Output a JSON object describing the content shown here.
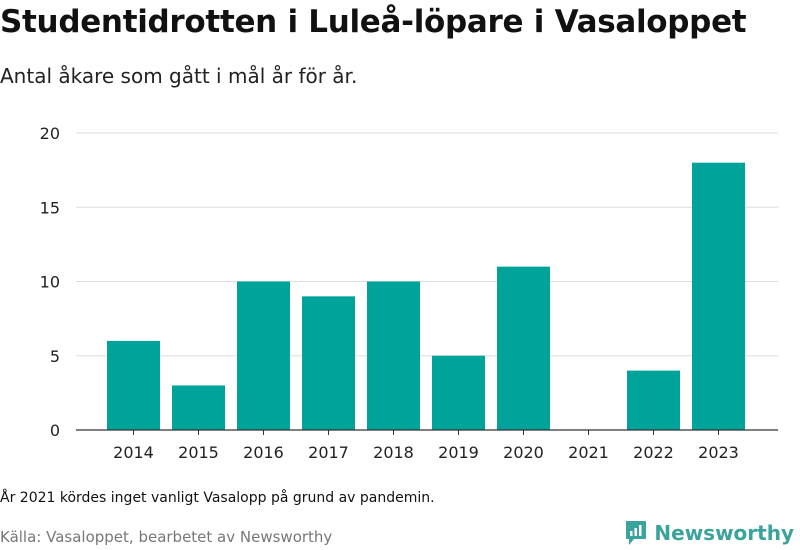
{
  "header": {
    "title": "Studentidrotten i Luleå-löpare i Vasaloppet",
    "subtitle": "Antal åkare som gått i mål år för år."
  },
  "footer": {
    "note": "År 2021 kördes inget vanligt Vasalopp på grund av pandemin.",
    "source": "Källa: Vasaloppet, bearbetet av Newsworthy",
    "brand": "Newsworthy",
    "brand_icon": "newsworthy-logo-icon",
    "brand_color": "#3aa39b"
  },
  "chart_data": {
    "type": "bar",
    "title": "Studentidrotten i Luleå-löpare i Vasaloppet",
    "subtitle": "Antal åkare som gått i mål år för år.",
    "xlabel": "",
    "ylabel": "",
    "categories": [
      "2014",
      "2015",
      "2016",
      "2017",
      "2018",
      "2019",
      "2020",
      "2021",
      "2022",
      "2023"
    ],
    "values": [
      6,
      3,
      10,
      9,
      10,
      5,
      11,
      0,
      4,
      18
    ],
    "ylim": [
      0,
      20
    ],
    "yticks": [
      0,
      5,
      10,
      15,
      20
    ],
    "grid": true,
    "bar_color": "#00a39a",
    "grid_color": "#dddddd",
    "axis_color": "#333333"
  }
}
